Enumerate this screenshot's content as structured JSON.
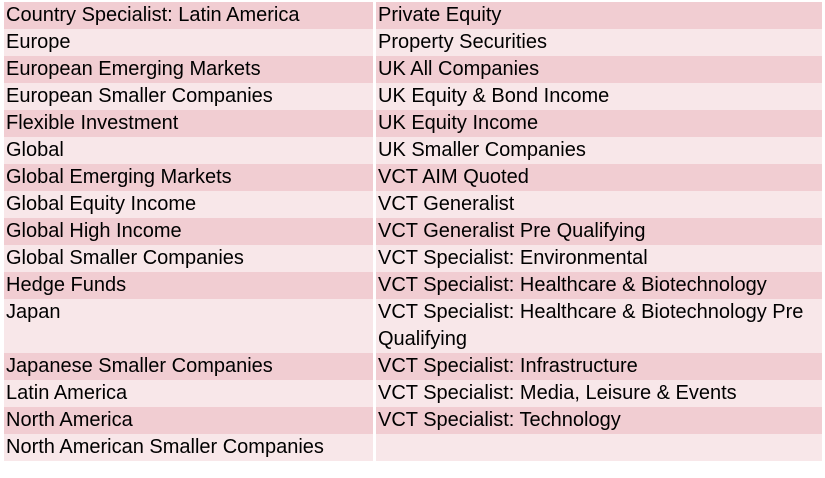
{
  "table": {
    "rows": [
      [
        "Country Specialist: Latin America",
        "Private Equity"
      ],
      [
        "Europe",
        "Property Securities"
      ],
      [
        "European Emerging Markets",
        "UK All Companies"
      ],
      [
        "European Smaller Companies",
        "UK Equity & Bond Income"
      ],
      [
        "Flexible Investment",
        "UK Equity Income"
      ],
      [
        "Global",
        "UK Smaller Companies"
      ],
      [
        "Global Emerging Markets",
        "VCT AIM Quoted"
      ],
      [
        "Global Equity Income",
        "VCT Generalist"
      ],
      [
        "Global High Income",
        "VCT Generalist Pre Qualifying"
      ],
      [
        "Global Smaller Companies",
        "VCT Specialist: Environmental"
      ],
      [
        "Hedge Funds",
        "VCT Specialist: Healthcare & Biotechnology"
      ],
      [
        "Japan",
        "VCT Specialist: Healthcare & Biotechnology Pre Qualifying"
      ],
      [
        "Japanese Smaller Companies",
        "VCT Specialist: Infrastructure"
      ],
      [
        "Latin America",
        "VCT Specialist: Media, Leisure & Events"
      ],
      [
        "North America",
        "VCT Specialist: Technology"
      ],
      [
        "North American Smaller Companies"
      ]
    ]
  }
}
